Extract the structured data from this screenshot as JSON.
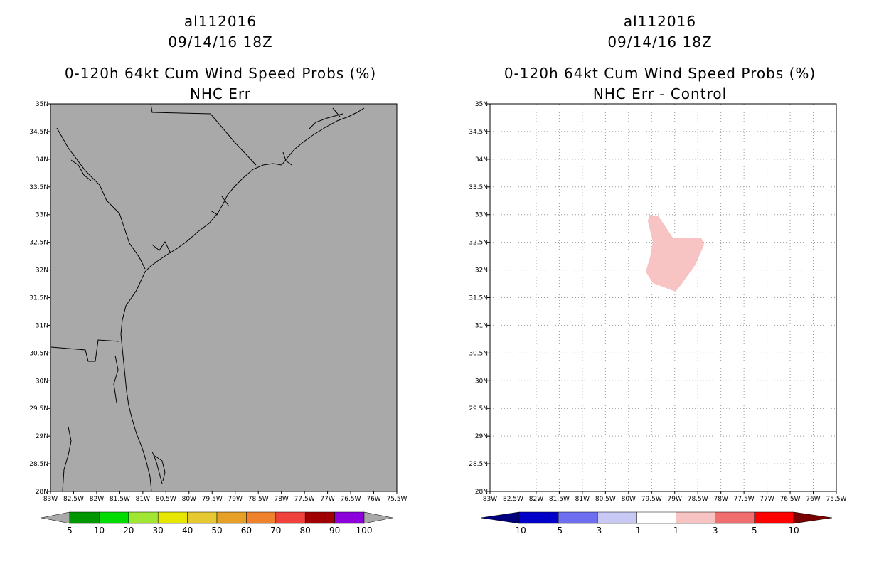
{
  "left_panel": {
    "storm_id": "al112016",
    "datetime": "09/14/16 18Z",
    "product": "0-120h 64kt Cum Wind Speed Probs (%)",
    "subtitle": "NHC Err",
    "map_fill": "#a9a9a9",
    "colorbar": {
      "labels": [
        "5",
        "10",
        "20",
        "30",
        "40",
        "50",
        "60",
        "70",
        "80",
        "90",
        "100"
      ],
      "colors": [
        "#009600",
        "#00dc00",
        "#a0e632",
        "#e6e600",
        "#e6c832",
        "#e6a028",
        "#f0822d",
        "#f0413c",
        "#a00000",
        "#8c00dc"
      ],
      "end_color": "#a9a9a9"
    }
  },
  "right_panel": {
    "storm_id": "al112016",
    "datetime": "09/14/16 18Z",
    "product": "0-120h 64kt Cum Wind Speed Probs (%)",
    "subtitle": "NHC Err - Control",
    "map_fill": "#ffffff",
    "anomaly_fill": "#f8c3c3",
    "colorbar": {
      "labels": [
        "-10",
        "-5",
        "-3",
        "-1",
        "1",
        "3",
        "5",
        "10"
      ],
      "colors": [
        "#0000c8",
        "#6e6ef0",
        "#c8c8f5",
        "#ffffff",
        "#f8c3c3",
        "#f06e6e",
        "#ff0000"
      ],
      "low_end_color": "#00007d",
      "high_end_color": "#780000"
    }
  },
  "axes": {
    "lat_labels": [
      "35N",
      "34.5N",
      "34N",
      "33.5N",
      "33N",
      "32.5N",
      "32N",
      "31.5N",
      "31N",
      "30.5N",
      "30N",
      "29.5N",
      "29N",
      "28.5N",
      "28N"
    ],
    "lon_labels": [
      "83W",
      "82.5W",
      "82W",
      "81.5W",
      "81W",
      "80.5W",
      "80W",
      "79.5W",
      "79W",
      "78.5W",
      "78W",
      "77.5W",
      "77W",
      "76.5W",
      "76W",
      "75.5W"
    ],
    "lat_range": [
      28,
      35
    ],
    "lon_range": [
      -83,
      -75.5
    ]
  }
}
